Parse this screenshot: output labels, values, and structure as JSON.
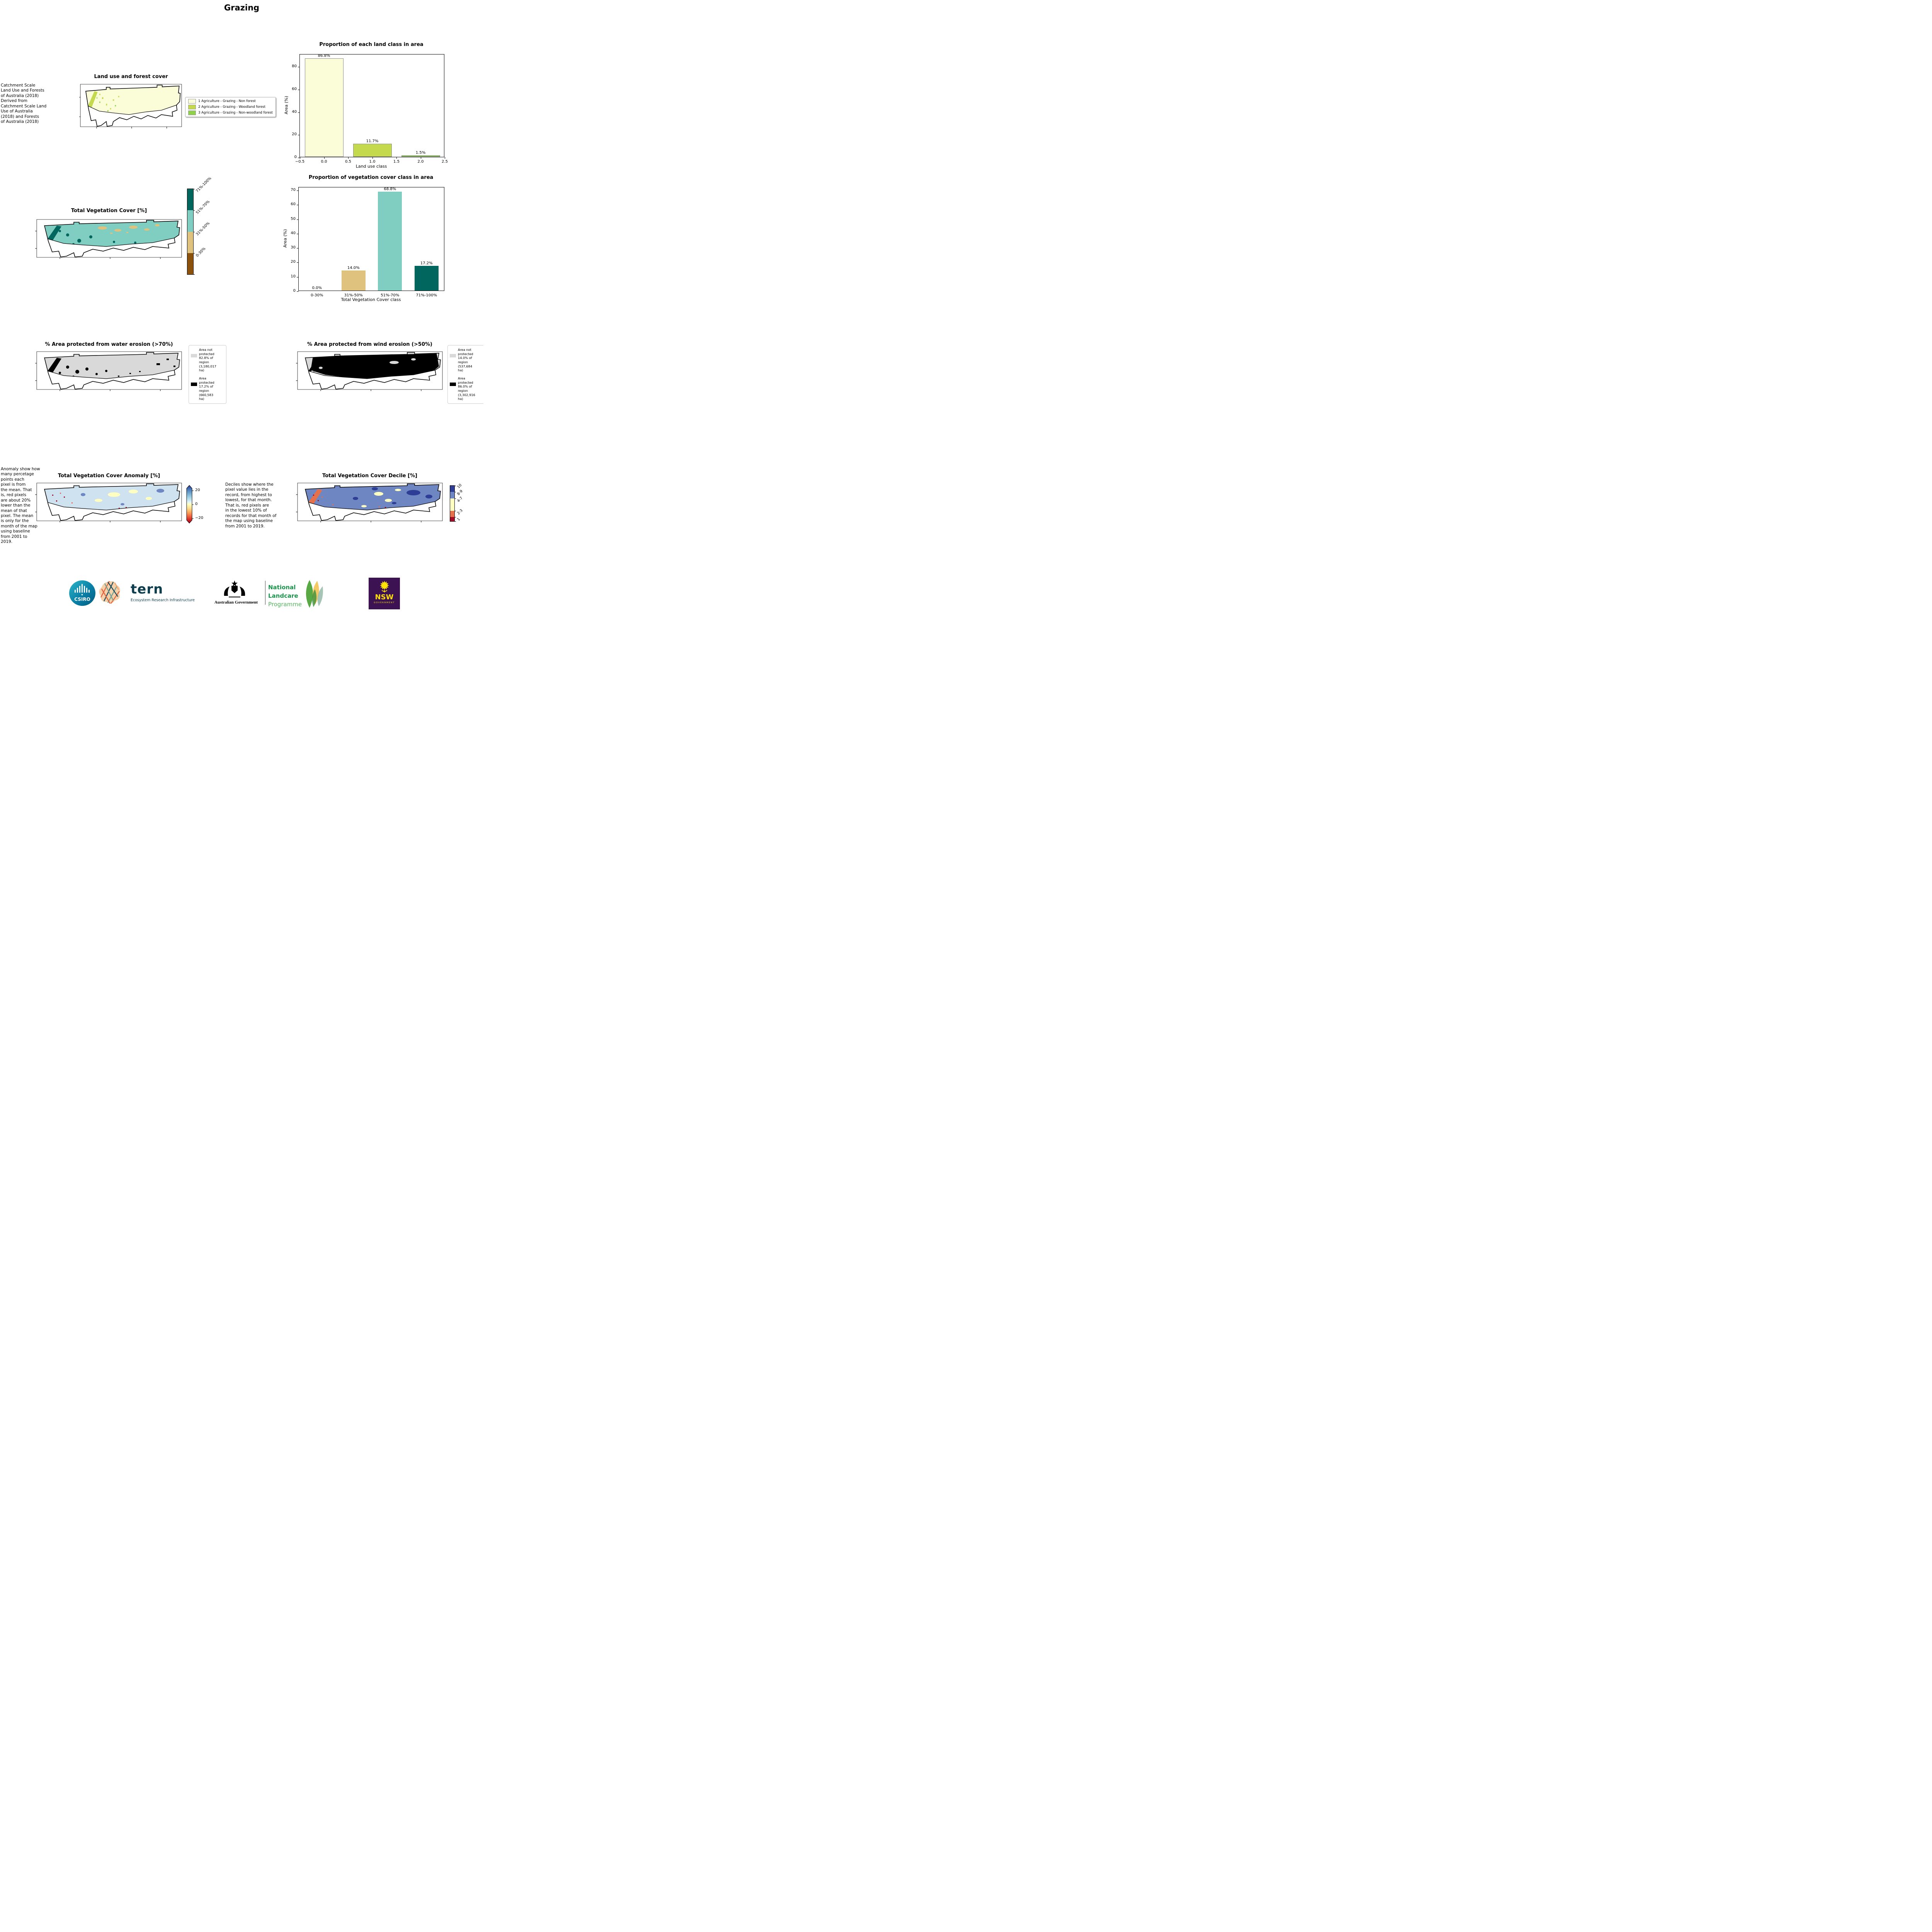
{
  "page": {
    "title": "Grazing"
  },
  "palette": {
    "land_nonforest": "#fbfcd8",
    "land_woodland": "#c5d94e",
    "land_nonwoodland": "#8fd14a",
    "veg_0_30": "#8c510a",
    "veg_31_50": "#dfc27d",
    "veg_51_70": "#80cdc1",
    "veg_71_100": "#01665e",
    "not_protected": "#d9d9d9",
    "protected": "#000000",
    "anomaly_base": "#cfe2f0",
    "anomaly_positive": "#313695",
    "anomaly_mid": "#ffffbf",
    "anomaly_negative": "#a50026",
    "decile_10": "#2e3d96",
    "decile_8_9": "#6e86c1",
    "decile_4_7": "#feffc0",
    "decile_2_3": "#e4714b",
    "decile_1": "#a50d27"
  },
  "land_use": {
    "title": "Land use and forest cover",
    "note": " Catchment Scale\nLand Use and Forests\nof Australia (2018)\nDerived from\nCatchment Scale Land\nUse of Australia\n(2018) and Forests\nof Australia (2018)",
    "legend": [
      {
        "label": "1 Agriculture - Grazing - Non forest"
      },
      {
        "label": "2 Agriculture - Grazing - Woodland forest"
      },
      {
        "label": "3 Agriculture - Grazing - Non-woodland forest"
      }
    ]
  },
  "veg_cover": {
    "title": "Total Vegetation Cover [%]",
    "colorbar_labels": [
      "71%-100%",
      "51%-70%",
      "31%-50%",
      "0-30%"
    ]
  },
  "water_erosion": {
    "title": "% Area protected from water erosion (>70%)",
    "legend": [
      {
        "label": "Area not\nprotected\n82.8% of\nregion\n(3,180,017\nha)"
      },
      {
        "label": "Area\nprotected\n17.2% of\nregion\n(660,583\nha)"
      }
    ]
  },
  "wind_erosion": {
    "title": "% Area protected from wind erosion (>50%)",
    "legend": [
      {
        "label": "Area not\nprotected\n14.0% of\nregion\n(537,684\nha)"
      },
      {
        "label": "Area\nprotected\n86.0% of\nregion\n(3,302,916\nha)"
      }
    ]
  },
  "anomaly": {
    "title": "Total Vegetation Cover Anomaly [%]",
    "note": "Anomaly show how\nmany percetage\npoints each\npixel is from\nthe mean. That\nis, red pixels\nare about 20%\nlower than the\nmean of that\npixel. The mean\nis only for the\nmonth of the map\nusing baseline\nfrom 2001 to\n2019.",
    "colorbar_ticks": [
      "20",
      "0",
      "−20"
    ]
  },
  "decile": {
    "title": "Total Vegetation Cover Decile [%]",
    "note": "Deciles show where the\npixel value lies in the\nrecord, from highest to\nlowest, for that month.\nThat is, red pixels are\nin the lowest 10% of\nrecords for that month of\nthe map using baseline\nfrom 2001 to 2019.",
    "colorbar_labels": [
      "10",
      "8-9",
      "4-7",
      "2-3",
      "1"
    ]
  },
  "chart_data": [
    {
      "type": "bar",
      "title": "Proportion of each land class in area",
      "xlabel": "Land use class",
      "ylabel": "Area (%)",
      "x_numeric": true,
      "xlim": [
        -0.5,
        2.5
      ],
      "x_centers": [
        0,
        1,
        2
      ],
      "bar_width": 0.8,
      "xticks": [
        -0.5,
        0,
        0.5,
        1,
        1.5,
        2,
        2.5
      ],
      "xtick_labels": [
        "−0.5",
        "0.0",
        "0.5",
        "1.0",
        "1.5",
        "2.0",
        "2.5"
      ],
      "ylim": [
        0,
        91
      ],
      "yticks": [
        0,
        20,
        40,
        60,
        80
      ],
      "categories": [
        "1 Non forest",
        "2 Woodland forest",
        "3 Non-woodland forest"
      ],
      "values": [
        86.8,
        11.7,
        1.5
      ],
      "bar_labels": [
        "86.8%",
        "11.7%",
        "1.5%"
      ],
      "colors": [
        "#fbfcd8",
        "#c5d94e",
        "#8fd14a"
      ],
      "bar_edge": "#8a8a8a",
      "legend_position": "none",
      "grid": false
    },
    {
      "type": "bar",
      "title": "Proportion of vegetation cover class in area",
      "xlabel": "Total Vegetation Cover class",
      "ylabel": "Area (%)",
      "x_numeric": false,
      "categories": [
        "0-30%",
        "31%-50%",
        "51%-70%",
        "71%-100%"
      ],
      "ylim": [
        0,
        72.2
      ],
      "yticks": [
        0,
        10,
        20,
        30,
        40,
        50,
        60,
        70
      ],
      "values": [
        0.0,
        14.0,
        68.8,
        17.2
      ],
      "bar_labels": [
        "0.0%",
        "14.0%",
        "68.8%",
        "17.2%"
      ],
      "colors": [
        "#8c510a",
        "#dfc27d",
        "#80cdc1",
        "#01665e"
      ],
      "legend_position": "none",
      "grid": false
    }
  ],
  "footer": {
    "csiro_label": "CSIRO",
    "tern_word": "tern",
    "tern_tagline": "Ecosystem Research Infrastructure",
    "ausgov_label": "Australian Government",
    "landcare_line1": "National",
    "landcare_line2": "Landcare",
    "landcare_line3": "Programme",
    "nsw_word": "NSW",
    "nsw_sub": "GOVERNMENT"
  }
}
